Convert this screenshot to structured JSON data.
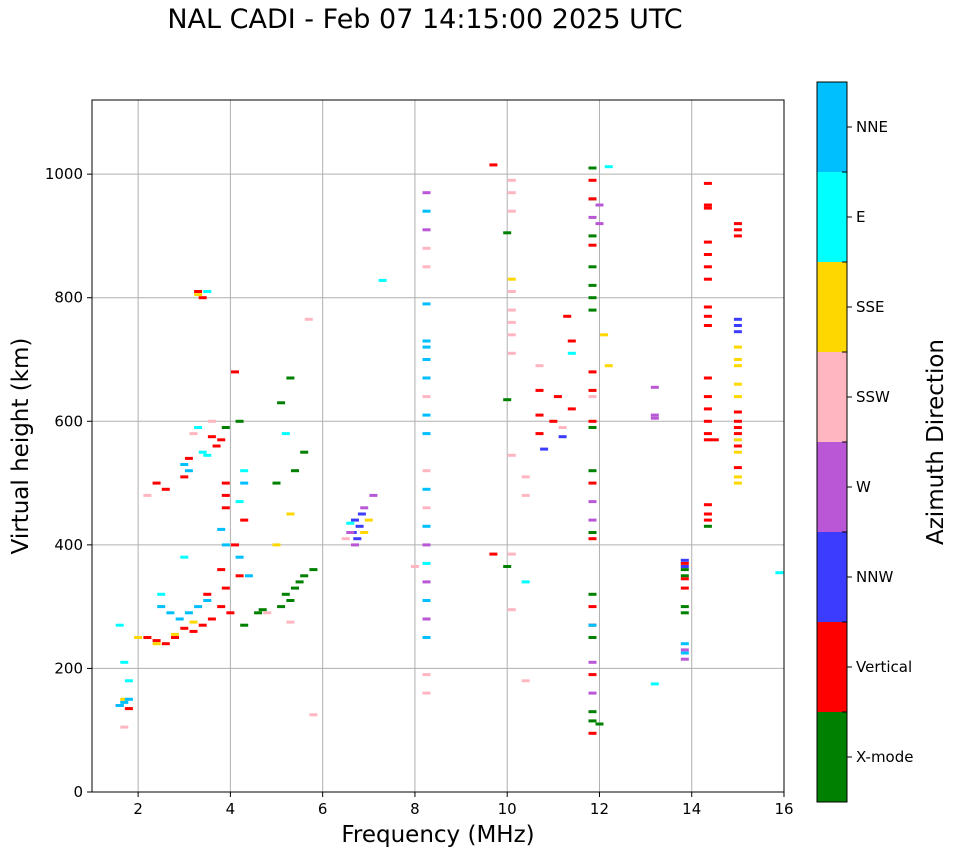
{
  "chart_data": {
    "type": "scatter",
    "title": "NAL CADI - Feb 07 14:15:00 2025 UTC",
    "xlabel": "Frequency (MHz)",
    "ylabel": "Virtual height (km)",
    "xlim": [
      1,
      16
    ],
    "ylim": [
      0,
      1120
    ],
    "xticks": [
      "2",
      "4",
      "6",
      "8",
      "10",
      "12",
      "14",
      "16"
    ],
    "yticks": [
      "0",
      "200",
      "400",
      "600",
      "800",
      "1000"
    ],
    "grid": true,
    "colorbar": {
      "label": "Azimuth Direction",
      "categories": [
        {
          "name": "X-mode",
          "color": "#008000"
        },
        {
          "name": "Vertical",
          "color": "#ff0000"
        },
        {
          "name": "NNW",
          "color": "#3c3cff"
        },
        {
          "name": "W",
          "color": "#b957d6"
        },
        {
          "name": "SSW",
          "color": "#ffb6c1"
        },
        {
          "name": "SSE",
          "color": "#ffd700"
        },
        {
          "name": "E",
          "color": "#00ffff"
        },
        {
          "name": "NNE",
          "color": "#00bfff"
        }
      ]
    },
    "series": [
      {
        "name": "X-mode",
        "points": [
          [
            5.3,
            670
          ],
          [
            5.1,
            630
          ],
          [
            5.6,
            550
          ],
          [
            5.4,
            520
          ],
          [
            5.0,
            500
          ],
          [
            5.8,
            360
          ],
          [
            5.6,
            350
          ],
          [
            5.5,
            340
          ],
          [
            5.4,
            330
          ],
          [
            5.2,
            320
          ],
          [
            5.3,
            310
          ],
          [
            5.1,
            300
          ],
          [
            4.7,
            295
          ],
          [
            4.6,
            290
          ],
          [
            4.3,
            270
          ],
          [
            3.9,
            590
          ],
          [
            4.2,
            600
          ],
          [
            11.85,
            1010
          ],
          [
            11.85,
            960
          ],
          [
            11.85,
            900
          ],
          [
            11.85,
            850
          ],
          [
            11.85,
            820
          ],
          [
            11.85,
            800
          ],
          [
            11.85,
            780
          ],
          [
            11.85,
            590
          ],
          [
            11.85,
            520
          ],
          [
            11.85,
            420
          ],
          [
            11.85,
            320
          ],
          [
            11.85,
            250
          ],
          [
            11.85,
            130
          ],
          [
            11.85,
            115
          ],
          [
            12.0,
            110
          ],
          [
            13.85,
            300
          ],
          [
            13.85,
            290
          ],
          [
            13.85,
            360
          ],
          [
            13.85,
            350
          ],
          [
            14.35,
            430
          ],
          [
            10.0,
            905
          ],
          [
            10.0,
            635
          ],
          [
            10.0,
            365
          ]
        ]
      },
      {
        "name": "Vertical",
        "points": [
          [
            3.3,
            810
          ],
          [
            3.4,
            800
          ],
          [
            4.1,
            680
          ],
          [
            3.6,
            575
          ],
          [
            3.8,
            570
          ],
          [
            3.7,
            560
          ],
          [
            3.1,
            540
          ],
          [
            2.4,
            500
          ],
          [
            2.6,
            490
          ],
          [
            3.0,
            510
          ],
          [
            3.9,
            500
          ],
          [
            3.9,
            480
          ],
          [
            3.9,
            460
          ],
          [
            4.3,
            440
          ],
          [
            4.1,
            400
          ],
          [
            3.8,
            360
          ],
          [
            4.2,
            350
          ],
          [
            3.9,
            330
          ],
          [
            3.5,
            320
          ],
          [
            3.8,
            300
          ],
          [
            4.0,
            290
          ],
          [
            3.6,
            280
          ],
          [
            3.4,
            270
          ],
          [
            3.2,
            260
          ],
          [
            3.0,
            265
          ],
          [
            2.8,
            250
          ],
          [
            2.6,
            240
          ],
          [
            2.4,
            245
          ],
          [
            2.2,
            250
          ],
          [
            1.6,
            140
          ],
          [
            1.8,
            135
          ],
          [
            9.7,
            1015
          ],
          [
            9.7,
            385
          ],
          [
            10.7,
            650
          ],
          [
            10.7,
            610
          ],
          [
            10.7,
            580
          ],
          [
            11.0,
            600
          ],
          [
            11.1,
            640
          ],
          [
            11.3,
            770
          ],
          [
            11.4,
            730
          ],
          [
            11.4,
            620
          ],
          [
            11.85,
            990
          ],
          [
            11.85,
            960
          ],
          [
            11.85,
            885
          ],
          [
            11.85,
            680
          ],
          [
            11.85,
            650
          ],
          [
            11.85,
            600
          ],
          [
            11.85,
            500
          ],
          [
            11.85,
            410
          ],
          [
            11.85,
            300
          ],
          [
            11.85,
            270
          ],
          [
            11.85,
            190
          ],
          [
            11.85,
            95
          ],
          [
            13.85,
            330
          ],
          [
            13.85,
            345
          ],
          [
            13.85,
            370
          ],
          [
            14.35,
            985
          ],
          [
            14.35,
            950
          ],
          [
            14.35,
            945
          ],
          [
            14.35,
            890
          ],
          [
            14.35,
            870
          ],
          [
            14.35,
            850
          ],
          [
            14.35,
            830
          ],
          [
            14.35,
            785
          ],
          [
            14.35,
            770
          ],
          [
            14.35,
            755
          ],
          [
            14.35,
            670
          ],
          [
            14.35,
            640
          ],
          [
            14.35,
            620
          ],
          [
            14.35,
            600
          ],
          [
            14.35,
            580
          ],
          [
            14.35,
            570
          ],
          [
            14.35,
            465
          ],
          [
            14.35,
            450
          ],
          [
            14.35,
            440
          ],
          [
            14.5,
            570
          ],
          [
            15.0,
            920
          ],
          [
            15.0,
            910
          ],
          [
            15.0,
            900
          ],
          [
            15.0,
            615
          ],
          [
            15.0,
            600
          ],
          [
            15.0,
            590
          ],
          [
            15.0,
            580
          ],
          [
            15.0,
            560
          ],
          [
            15.0,
            525
          ]
        ]
      },
      {
        "name": "NNW",
        "points": [
          [
            15.0,
            765
          ],
          [
            15.0,
            755
          ],
          [
            15.0,
            745
          ],
          [
            13.85,
            375
          ],
          [
            13.85,
            365
          ],
          [
            6.65,
            420
          ],
          [
            6.75,
            410
          ],
          [
            6.7,
            440
          ],
          [
            6.8,
            430
          ],
          [
            6.85,
            450
          ],
          [
            10.8,
            555
          ],
          [
            11.2,
            575
          ]
        ]
      },
      {
        "name": "W",
        "points": [
          [
            6.6,
            420
          ],
          [
            6.7,
            400
          ],
          [
            6.9,
            460
          ],
          [
            7.1,
            480
          ],
          [
            8.25,
            970
          ],
          [
            8.25,
            910
          ],
          [
            8.25,
            400
          ],
          [
            8.25,
            340
          ],
          [
            8.25,
            280
          ],
          [
            13.2,
            655
          ],
          [
            13.2,
            610
          ],
          [
            13.2,
            605
          ],
          [
            13.85,
            230
          ],
          [
            13.85,
            215
          ],
          [
            11.85,
            930
          ],
          [
            12.0,
            950
          ],
          [
            12.0,
            920
          ],
          [
            11.85,
            470
          ],
          [
            11.85,
            440
          ],
          [
            11.85,
            210
          ],
          [
            11.85,
            160
          ]
        ]
      },
      {
        "name": "SSW",
        "points": [
          [
            8.25,
            880
          ],
          [
            8.25,
            850
          ],
          [
            8.25,
            640
          ],
          [
            8.25,
            520
          ],
          [
            8.25,
            460
          ],
          [
            8.25,
            190
          ],
          [
            8.25,
            160
          ],
          [
            8.0,
            365
          ],
          [
            10.1,
            990
          ],
          [
            10.1,
            970
          ],
          [
            10.1,
            940
          ],
          [
            10.1,
            810
          ],
          [
            10.1,
            780
          ],
          [
            10.1,
            760
          ],
          [
            10.1,
            740
          ],
          [
            10.1,
            710
          ],
          [
            10.1,
            545
          ],
          [
            10.1,
            385
          ],
          [
            10.1,
            295
          ],
          [
            10.4,
            510
          ],
          [
            10.4,
            480
          ],
          [
            10.4,
            180
          ],
          [
            10.7,
            690
          ],
          [
            11.2,
            590
          ],
          [
            11.85,
            640
          ],
          [
            5.7,
            765
          ],
          [
            5.8,
            125
          ],
          [
            1.7,
            105
          ],
          [
            2.2,
            480
          ],
          [
            3.2,
            580
          ],
          [
            3.6,
            600
          ],
          [
            6.5,
            410
          ],
          [
            5.3,
            275
          ],
          [
            4.8,
            290
          ]
        ]
      },
      {
        "name": "SSE",
        "points": [
          [
            15.0,
            720
          ],
          [
            15.0,
            700
          ],
          [
            15.0,
            690
          ],
          [
            15.0,
            660
          ],
          [
            15.0,
            640
          ],
          [
            15.0,
            570
          ],
          [
            15.0,
            550
          ],
          [
            15.0,
            510
          ],
          [
            15.0,
            500
          ],
          [
            12.1,
            740
          ],
          [
            12.2,
            690
          ],
          [
            10.1,
            830
          ],
          [
            7.0,
            440
          ],
          [
            6.9,
            420
          ],
          [
            2.0,
            250
          ],
          [
            2.4,
            240
          ],
          [
            2.8,
            255
          ],
          [
            3.2,
            275
          ],
          [
            5.3,
            450
          ],
          [
            5.0,
            400
          ],
          [
            1.7,
            150
          ],
          [
            3.3,
            805
          ]
        ]
      },
      {
        "name": "E",
        "points": [
          [
            7.3,
            828
          ],
          [
            12.2,
            1012
          ],
          [
            3.5,
            810
          ],
          [
            3.5,
            545
          ],
          [
            3.4,
            550
          ],
          [
            3.3,
            590
          ],
          [
            1.6,
            270
          ],
          [
            1.8,
            180
          ],
          [
            1.7,
            210
          ],
          [
            2.5,
            320
          ],
          [
            3.0,
            380
          ],
          [
            4.3,
            520
          ],
          [
            4.2,
            470
          ],
          [
            5.2,
            580
          ],
          [
            8.25,
            370
          ],
          [
            10.4,
            340
          ],
          [
            13.2,
            175
          ],
          [
            15.9,
            355
          ],
          [
            11.4,
            710
          ],
          [
            6.6,
            435
          ]
        ]
      },
      {
        "name": "NNE",
        "points": [
          [
            8.25,
            940
          ],
          [
            8.25,
            790
          ],
          [
            8.25,
            730
          ],
          [
            8.25,
            720
          ],
          [
            8.25,
            700
          ],
          [
            8.25,
            670
          ],
          [
            8.25,
            610
          ],
          [
            8.25,
            580
          ],
          [
            8.25,
            490
          ],
          [
            8.25,
            430
          ],
          [
            8.25,
            310
          ],
          [
            8.25,
            250
          ],
          [
            3.8,
            425
          ],
          [
            3.9,
            400
          ],
          [
            4.2,
            380
          ],
          [
            4.4,
            350
          ],
          [
            3.5,
            310
          ],
          [
            3.3,
            300
          ],
          [
            3.1,
            290
          ],
          [
            2.9,
            280
          ],
          [
            2.7,
            290
          ],
          [
            2.5,
            300
          ],
          [
            1.6,
            140
          ],
          [
            1.7,
            145
          ],
          [
            1.8,
            150
          ],
          [
            3.0,
            530
          ],
          [
            3.1,
            520
          ],
          [
            4.3,
            500
          ],
          [
            11.85,
            270
          ],
          [
            13.85,
            240
          ],
          [
            13.85,
            225
          ]
        ]
      }
    ]
  }
}
